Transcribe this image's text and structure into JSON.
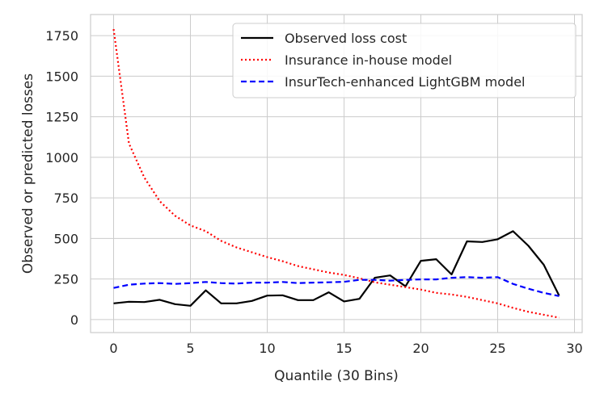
{
  "chart_data": {
    "type": "line",
    "xlabel": "Quantile (30 Bins)",
    "ylabel": "Observed or predicted losses",
    "xlim": [
      -1.5,
      30.5
    ],
    "ylim": [
      -80,
      1880
    ],
    "xticks": [
      0,
      5,
      10,
      15,
      20,
      25,
      30
    ],
    "yticks": [
      0,
      250,
      500,
      750,
      1000,
      1250,
      1500,
      1750
    ],
    "grid": true,
    "legend_position": "top-right",
    "x": [
      0,
      1,
      2,
      3,
      4,
      5,
      6,
      7,
      8,
      9,
      10,
      11,
      12,
      13,
      14,
      15,
      16,
      17,
      18,
      19,
      20,
      21,
      22,
      23,
      24,
      25,
      26,
      27,
      28,
      29
    ],
    "series": [
      {
        "name": "Observed loss cost",
        "color": "#000000",
        "style": "solid",
        "values": [
          100,
          110,
          108,
          122,
          95,
          85,
          180,
          100,
          100,
          115,
          148,
          150,
          120,
          120,
          168,
          112,
          128,
          258,
          272,
          205,
          362,
          372,
          278,
          482,
          478,
          495,
          545,
          455,
          338,
          148
        ]
      },
      {
        "name": "Insurance in-house model",
        "color": "#ff0000",
        "style": "dotted",
        "values": [
          1790,
          1085,
          875,
          730,
          640,
          580,
          545,
          485,
          445,
          415,
          385,
          360,
          330,
          310,
          290,
          275,
          255,
          230,
          215,
          200,
          185,
          165,
          155,
          140,
          120,
          100,
          72,
          48,
          30,
          12
        ]
      },
      {
        "name": "InsurTech-enhanced LightGBM model",
        "color": "#0000ff",
        "style": "dashed",
        "values": [
          195,
          215,
          222,
          225,
          220,
          225,
          232,
          225,
          222,
          228,
          228,
          232,
          225,
          228,
          230,
          233,
          245,
          245,
          240,
          245,
          248,
          248,
          258,
          262,
          258,
          262,
          220,
          190,
          165,
          145
        ]
      }
    ]
  }
}
